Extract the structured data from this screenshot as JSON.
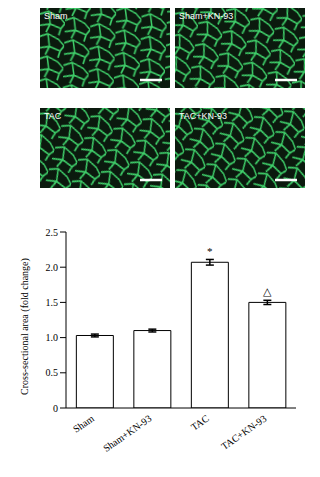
{
  "image_panels": {
    "labels": [
      "Sham",
      "Sham+KN-93",
      "TAC",
      "TAC+KN-93"
    ]
  },
  "chart_data": {
    "type": "bar",
    "categories": [
      "Sham",
      "Sham+KN-93",
      "TAC",
      "TAC+KN-93"
    ],
    "values": [
      1.03,
      1.1,
      2.07,
      1.5
    ],
    "errors": [
      0.02,
      0.02,
      0.04,
      0.03
    ],
    "color": "#ffffff",
    "y_label": "Cross-sectional area (fold change)",
    "ylim": [
      0,
      2.5
    ],
    "yticks": [
      0,
      0.5,
      {
        "value": 1,
        "label": "1.0"
      },
      1.5,
      {
        "value": 2,
        "label": "2.0"
      },
      2.5
    ],
    "annotations": [
      {
        "category": "TAC",
        "text": "*"
      },
      {
        "category": "TAC+KN-93",
        "text": "△"
      }
    ],
    "grid": false
  }
}
